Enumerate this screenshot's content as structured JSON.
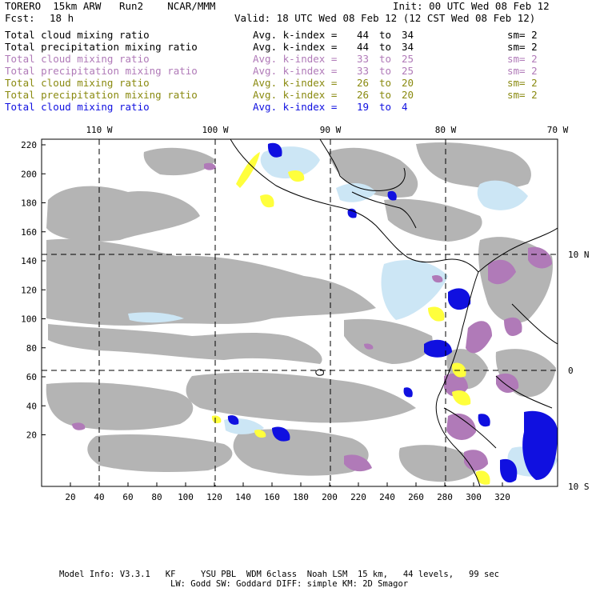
{
  "header": {
    "title_left": "TORERO  15km ARW   Run2    NCAR/MMM",
    "init": "Init: 00 UTC Wed 08 Feb 12",
    "fcst_label": "Fcst:",
    "fcst_value": "18 h",
    "valid": "Valid: 18 UTC Wed 08 Feb 12 (12 CST Wed 08 Feb 12)"
  },
  "fields": [
    {
      "name": "Total cloud mixing ratio",
      "avg": "Avg. k-index =",
      "k_from": "44",
      "to": "to",
      "k_to": "34",
      "sm": "sm= 2",
      "color": "#000000"
    },
    {
      "name": "Total precipitation mixing ratio",
      "avg": "Avg. k-index =",
      "k_from": "44",
      "to": "to",
      "k_to": "34",
      "sm": "sm= 2",
      "color": "#000000"
    },
    {
      "name": "Total cloud mixing ratio",
      "avg": "Avg. k-index =",
      "k_from": "33",
      "to": "to",
      "k_to": "25",
      "sm": "sm= 2",
      "color": "#b07ab8"
    },
    {
      "name": "Total precipitation mixing ratio",
      "avg": "Avg. k-index =",
      "k_from": "33",
      "to": "to",
      "k_to": "25",
      "sm": "sm= 2",
      "color": "#b07ab8"
    },
    {
      "name": "Total cloud mixing ratio",
      "avg": "Avg. k-index =",
      "k_from": "26",
      "to": "to",
      "k_to": "20",
      "sm": "sm= 2",
      "color": "#8a8a10"
    },
    {
      "name": "Total precipitation mixing ratio",
      "avg": "Avg. k-index =",
      "k_from": "26",
      "to": "to",
      "k_to": "20",
      "sm": "sm= 2",
      "color": "#8a8a10"
    },
    {
      "name": "Total cloud mixing ratio",
      "avg": "Avg. k-index =",
      "k_from": "19",
      "to": "to",
      "k_to": "4",
      "sm": "",
      "color": "#1010e0"
    }
  ],
  "map": {
    "lon_labels": [
      "110 W",
      "100 W",
      "90 W",
      "80 W",
      "70 W"
    ],
    "lat_labels": [
      "10 N",
      "0",
      "10 S"
    ],
    "y_ticks": [
      "220",
      "200",
      "180",
      "160",
      "140",
      "120",
      "100",
      "80",
      "60",
      "40",
      "20"
    ],
    "x_ticks": [
      "20",
      "40",
      "60",
      "80",
      "100",
      "120",
      "140",
      "160",
      "180",
      "200",
      "220",
      "240",
      "260",
      "280",
      "300",
      "320"
    ],
    "colors": {
      "cloud_gray": "#b4b4b4",
      "light_blue": "#cce6f5",
      "mid_blue": "#6fa8e6",
      "deep_blue": "#1010e0",
      "purple": "#b07ab8",
      "yellow": "#ffff3c"
    }
  },
  "footer": {
    "line1": "Model Info: V3.3.1   KF     YSU PBL  WDM 6class  Noah LSM  15 km,   44 levels,   99 sec",
    "line2": "LW: Godd SW: Goddard DIFF: simple KM: 2D Smagor"
  }
}
